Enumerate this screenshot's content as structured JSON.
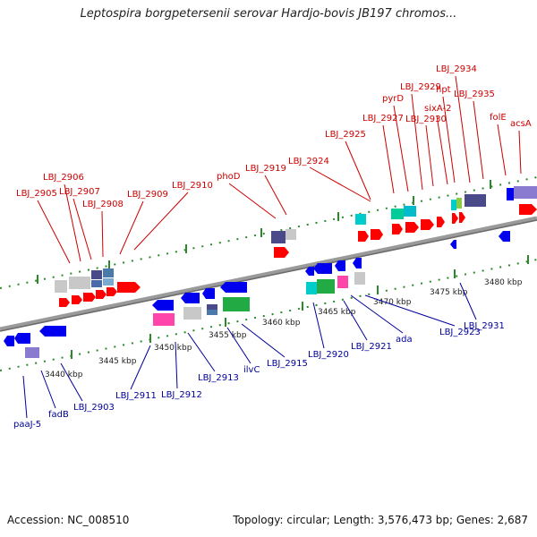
{
  "title": "Leptospira borgpetersenii serovar Hardjo-bovis JB197 chromos...",
  "footer": {
    "accession": "Accession: NC_008510",
    "summary": "Topology: circular; Length: 3,576,473 bp; Genes: 2,687"
  },
  "colors": {
    "forward_gene": "#ff0000",
    "reverse_gene": "#0000ee",
    "forward_label": "#cc0000",
    "reverse_label": "#000099",
    "backbone": "#888888",
    "tick": "#2a8a2a"
  },
  "kbp_ticks": [
    {
      "kb": 3440,
      "label": "3440 kbp"
    },
    {
      "kb": 3445,
      "label": "3445 kbp"
    },
    {
      "kb": 3450,
      "label": "3450 kbp"
    },
    {
      "kb": 3455,
      "label": "3455 kbp"
    },
    {
      "kb": 3460,
      "label": "3460 kbp"
    },
    {
      "kb": 3465,
      "label": "3465 kbp"
    },
    {
      "kb": 3470,
      "label": "3470 kbp"
    },
    {
      "kb": 3475,
      "label": "3475 kbp"
    },
    {
      "kb": 3480,
      "label": "3480 kbp"
    }
  ],
  "forward_genes": [
    "LBJ_2905",
    "LBJ_2906",
    "LBJ_2907",
    "LBJ_2908",
    "LBJ_2909",
    "LBJ_2910",
    "phoD",
    "LBJ_2919",
    "LBJ_2924",
    "LBJ_2925",
    "LBJ_2927",
    "pyrD",
    "LBJ_2929",
    "LBJ_2930",
    "sixA-2",
    "hpt",
    "LBJ_2934",
    "LBJ_2935",
    "folE",
    "acsA"
  ],
  "reverse_genes": [
    "paaJ-5",
    "fadB",
    "LBJ_2903",
    "LBJ_2911",
    "LBJ_2912",
    "LBJ_2913",
    "ilvC",
    "LBJ_2915",
    "LBJ_2920",
    "LBJ_2921",
    "ada",
    "LBJ_2923",
    "LBJ_2931"
  ]
}
